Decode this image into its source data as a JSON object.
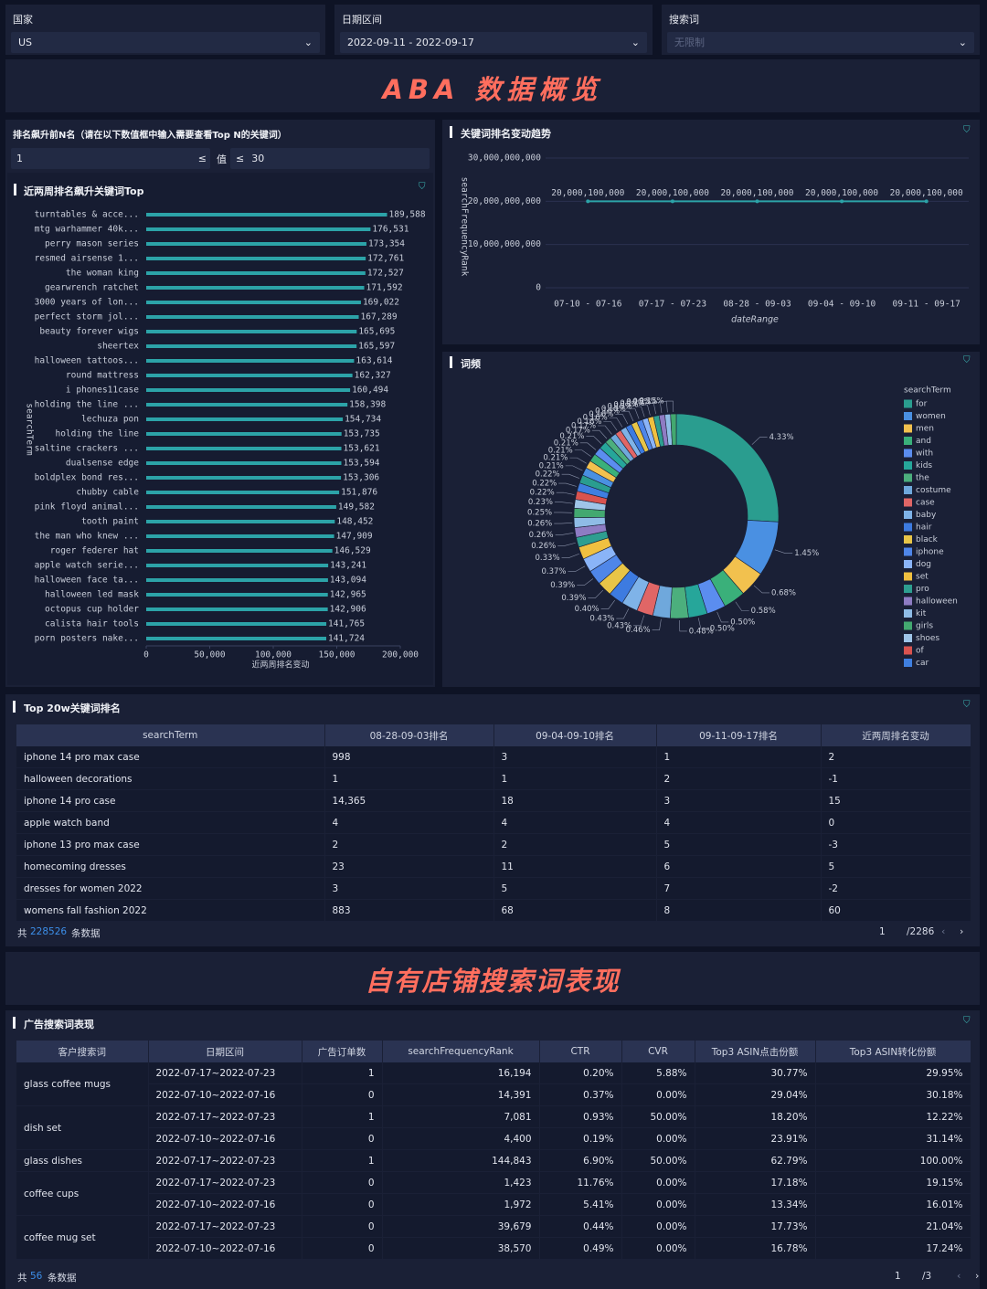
{
  "filters": [
    {
      "label": "国家",
      "value": "US"
    },
    {
      "label": "日期区间",
      "value": "2022-09-11 - 2022-09-17"
    },
    {
      "label": "搜索词",
      "value": "无限制"
    }
  ],
  "banner_title": "ABA 数据概览",
  "rank_filter": {
    "title": "排名飙升前N名（请在以下数值框中输入需要查看Top N的关键词）",
    "from": "1",
    "op1": "≤",
    "mid": "值",
    "op2": "≤",
    "to": "30"
  },
  "chart_data": [
    {
      "type": "bar",
      "orientation": "horizontal",
      "title": "近两周排名飙升关键词Top",
      "x_label": "近两周排名变动",
      "y_label": "searchTerm",
      "color": "#2ca3a8",
      "categories": [
        "turntables & acce...",
        "mtg warhammer 40k...",
        "perry mason series",
        "resmed airsense 1...",
        "the woman king",
        "gearwrench ratchet",
        "3000 years of lon...",
        "perfect storm jol...",
        "beauty forever wigs",
        "sheertex",
        "halloween tattoos...",
        "round mattress",
        "i phones11case",
        "holding the line ...",
        "lechuza pon",
        "holding the line",
        "saltine crackers ...",
        "dualsense edge",
        "boldplex bond res...",
        "chubby cable",
        "pink floyd animal...",
        "tooth paint",
        "the man who knew ...",
        "roger federer hat",
        "apple watch serie...",
        "halloween face ta...",
        "halloween led mask",
        "octopus cup holder",
        "calista hair tools",
        "porn posters nake..."
      ],
      "values": [
        189588,
        176531,
        173354,
        172761,
        172527,
        171592,
        169022,
        167289,
        165695,
        165597,
        163614,
        162327,
        160494,
        158398,
        154734,
        153735,
        153621,
        153594,
        153306,
        151876,
        149582,
        148452,
        147909,
        146529,
        143241,
        143094,
        142965,
        142906,
        141765,
        141724
      ],
      "value_labels": [
        "189,588",
        "176,531",
        "173,354",
        "172,761",
        "172,527",
        "171,592",
        "169,022",
        "167,289",
        "165,695",
        "165,597",
        "163,614",
        "162,327",
        "160,494",
        "158,398",
        "154,734",
        "153,735",
        "153,621",
        "153,594",
        "153,306",
        "151,876",
        "149,582",
        "148,452",
        "147,909",
        "146,529",
        "143,241",
        "143,094",
        "142,965",
        "142,906",
        "141,765",
        "141,724"
      ],
      "xlim": [
        0,
        200000
      ],
      "xticks": [
        0,
        {
          "value": 50000,
          "label": "50,000"
        },
        {
          "value": 100000,
          "label": "100,000"
        },
        {
          "value": 150000,
          "label": "150,000"
        },
        {
          "value": 200000,
          "label": "200,000"
        }
      ]
    },
    {
      "type": "line",
      "title": "关键词排名变动趋势",
      "x_label": "dateRange",
      "y_label": "searchFrequencyRank",
      "color": "#2ca3a8",
      "grid": true,
      "categories": [
        "07-10 - 07-16",
        "07-17 - 07-23",
        "08-28 - 09-03",
        "09-04 - 09-10",
        "09-11 - 09-17"
      ],
      "values": [
        20000100000,
        20000100000,
        20000100000,
        20000100000,
        20000100000
      ],
      "value_labels": [
        "20,000,100,000",
        "20,000,100,000",
        "20,000,100,000",
        "20,000,100,000",
        "20,000,100,000"
      ],
      "ylim": [
        0,
        30000000000
      ],
      "yticks": [
        0,
        {
          "value": 10000000000,
          "label": "10,000,000,000"
        },
        {
          "value": 20000000000,
          "label": "20,000,000,000"
        },
        {
          "value": 30000000000,
          "label": "30,000,000,000"
        }
      ]
    },
    {
      "type": "pie",
      "title": "词频",
      "legend_title": "searchTerm",
      "donut": true,
      "palette": [
        "#2a9d8f",
        "#4a90e2",
        "#f2c14e",
        "#3ab07a",
        "#5b8def",
        "#26a69a",
        "#4caf7d",
        "#6fa8dc",
        "#e06666",
        "#7fb3e8",
        "#3d7be0",
        "#e8c547",
        "#4f86e8",
        "#8ab4f8",
        "#f0c040",
        "#2e9e90",
        "#8e7cc3",
        "#8fbce6",
        "#43a870",
        "#9fc5e8",
        "#d9534f",
        "#3f7fe0"
      ],
      "categories": [
        "for",
        "women",
        "men",
        "and",
        "with",
        "kids",
        "the",
        "costume",
        "case",
        "baby",
        "hair",
        "black",
        "iphone",
        "dog",
        "set",
        "pro",
        "halloween",
        "kit",
        "girls",
        "shoes",
        "of",
        "car",
        null,
        null,
        null,
        null,
        null,
        null,
        null,
        null,
        null,
        null,
        null,
        null,
        null,
        null,
        null,
        null,
        null,
        null,
        null
      ],
      "values": [
        4.33,
        1.45,
        0.68,
        0.58,
        0.5,
        0.5,
        0.48,
        0.46,
        0.43,
        0.43,
        0.4,
        0.39,
        0.39,
        0.37,
        0.33,
        0.26,
        0.26,
        0.26,
        0.25,
        0.23,
        0.22,
        0.22,
        0.22,
        0.21,
        0.21,
        0.21,
        0.21,
        0.21,
        0.17,
        0.17,
        0.16,
        0.16,
        0.16,
        0.16,
        0.15,
        0.15,
        0.15,
        0.15,
        0.15,
        0.15,
        0.15
      ],
      "value_labels": [
        "4.33%",
        "1.45%",
        "0.68%",
        "0.58%",
        "0.50%",
        "0.50%",
        "0.48%",
        "0.46%",
        "0.43%",
        "0.43%",
        "0.40%",
        "0.39%",
        "0.39%",
        "0.37%",
        "0.33%",
        "0.26%",
        "0.26%",
        "0.26%",
        "0.25%",
        "0.23%",
        "0.22%",
        "0.22%",
        "0.22%",
        "0.21%",
        "0.21%",
        "0.21%",
        "0.21%",
        "0.21%",
        "0.17%",
        "0.17%",
        "0.16%",
        "0.16%",
        "0.16%",
        "0.16%",
        "0.15%",
        "0.15%",
        "0.15%",
        "0.15%",
        "0.15%",
        "0.15%",
        "0.15%"
      ]
    }
  ],
  "top_table": {
    "title": "Top 20w关键词排名",
    "columns": [
      "searchTerm",
      "08-28-09-03排名",
      "09-04-09-10排名",
      "09-11-09-17排名",
      "近两周排名变动"
    ],
    "rows": [
      [
        "iphone 14 pro max case",
        "998",
        "3",
        "1",
        "2"
      ],
      [
        "halloween decorations",
        "1",
        "1",
        "2",
        "-1"
      ],
      [
        "iphone 14 pro case",
        "14,365",
        "18",
        "3",
        "15"
      ],
      [
        "apple watch band",
        "4",
        "4",
        "4",
        "0"
      ],
      [
        "iphone 13 pro max case",
        "2",
        "2",
        "5",
        "-3"
      ],
      [
        "homecoming dresses",
        "23",
        "11",
        "6",
        "5"
      ],
      [
        "dresses for women 2022",
        "3",
        "5",
        "7",
        "-2"
      ],
      [
        "womens fall fashion 2022",
        "883",
        "68",
        "8",
        "60"
      ]
    ],
    "footer": {
      "prefix": "共",
      "count": "228526",
      "suffix": "条数据",
      "page": "1",
      "pages": "/2286"
    }
  },
  "section2_title": "自有店铺搜索词表现",
  "ad_table": {
    "title": "广告搜索词表现",
    "columns": [
      "客户搜索词",
      "日期区间",
      "广告订单数",
      "searchFrequencyRank",
      "CTR",
      "CVR",
      "Top3 ASIN点击份额",
      "Top3 ASIN转化份额"
    ],
    "groups": [
      {
        "term": "glass coffee mugs",
        "rows": [
          [
            "2022-07-17~2022-07-23",
            "1",
            "16,194",
            "0.20%",
            "5.88%",
            "30.77%",
            "29.95%"
          ],
          [
            "2022-07-10~2022-07-16",
            "0",
            "14,391",
            "0.37%",
            "0.00%",
            "29.04%",
            "30.18%"
          ]
        ]
      },
      {
        "term": "dish set",
        "rows": [
          [
            "2022-07-17~2022-07-23",
            "1",
            "7,081",
            "0.93%",
            "50.00%",
            "18.20%",
            "12.22%"
          ],
          [
            "2022-07-10~2022-07-16",
            "0",
            "4,400",
            "0.19%",
            "0.00%",
            "23.91%",
            "31.14%"
          ]
        ]
      },
      {
        "term": "glass dishes",
        "rows": [
          [
            "2022-07-17~2022-07-23",
            "1",
            "144,843",
            "6.90%",
            "50.00%",
            "62.79%",
            "100.00%"
          ]
        ]
      },
      {
        "term": "coffee cups",
        "rows": [
          [
            "2022-07-17~2022-07-23",
            "0",
            "1,423",
            "11.76%",
            "0.00%",
            "17.18%",
            "19.15%"
          ],
          [
            "2022-07-10~2022-07-16",
            "0",
            "1,972",
            "5.41%",
            "0.00%",
            "13.34%",
            "16.01%"
          ]
        ]
      },
      {
        "term": "coffee mug set",
        "rows": [
          [
            "2022-07-17~2022-07-23",
            "0",
            "39,679",
            "0.44%",
            "0.00%",
            "17.73%",
            "21.04%"
          ],
          [
            "2022-07-10~2022-07-16",
            "0",
            "38,570",
            "0.49%",
            "0.00%",
            "16.78%",
            "17.24%"
          ]
        ]
      }
    ],
    "footer": {
      "prefix": "共",
      "count": "56",
      "suffix": "条数据",
      "page": "1",
      "pages": "/3"
    }
  }
}
